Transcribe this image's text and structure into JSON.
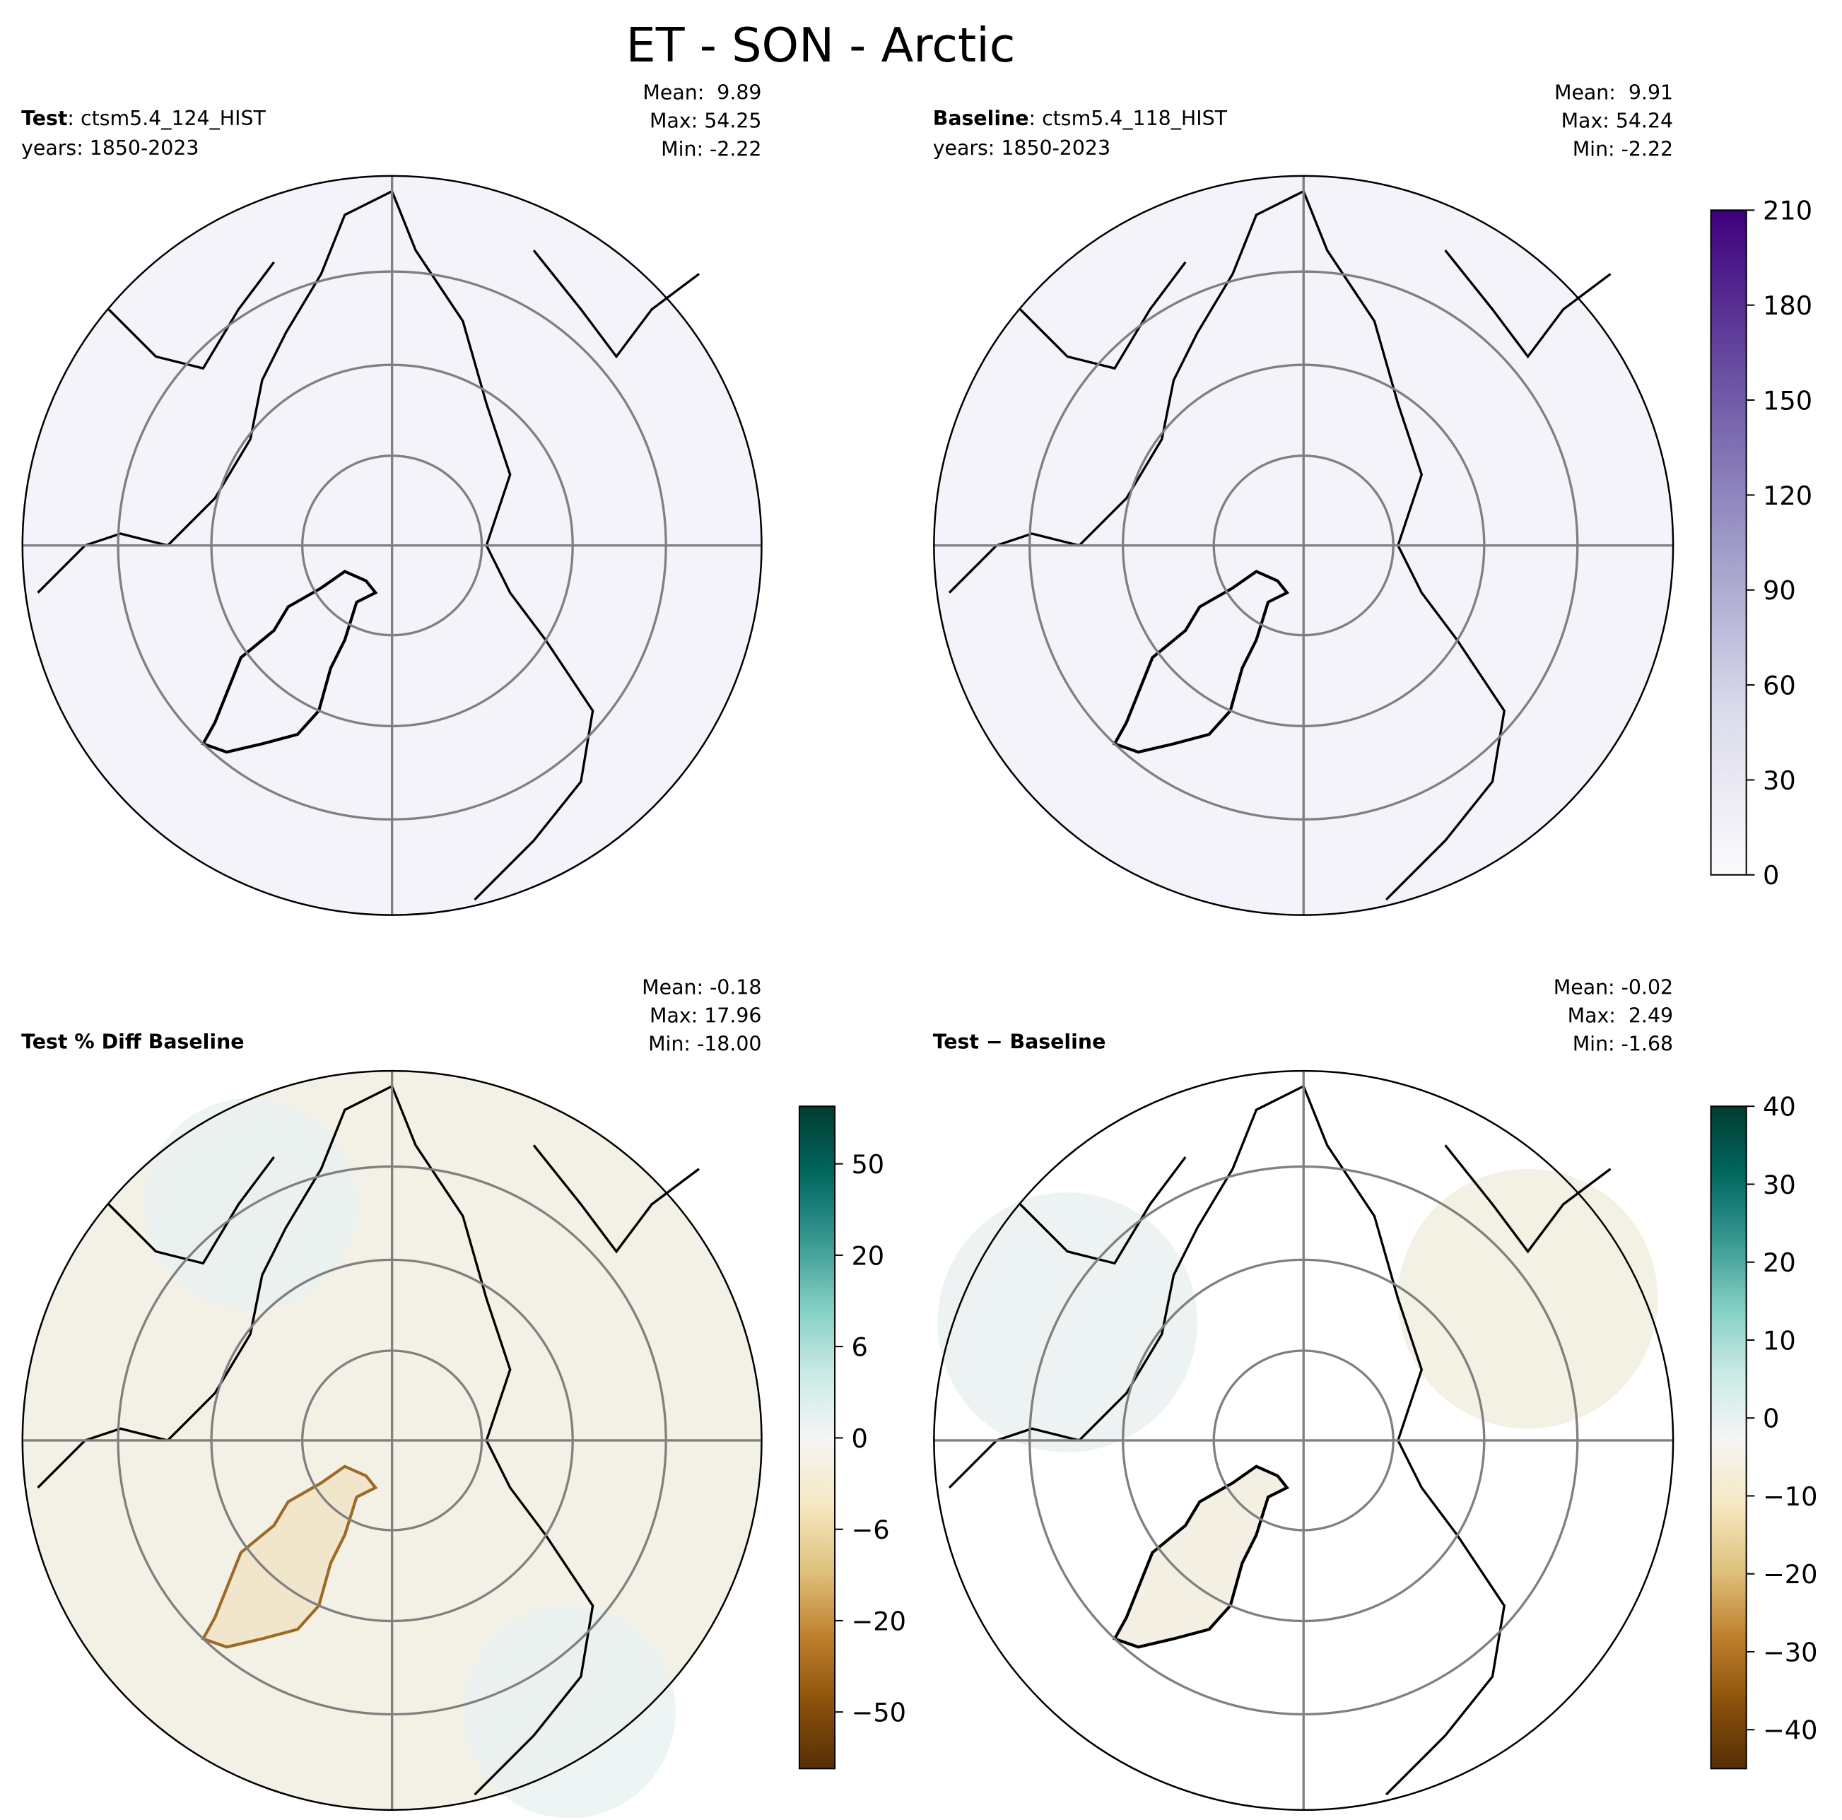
{
  "title": "ET - SON - Arctic",
  "panels": [
    {
      "label": "Test",
      "label_detail": ": ctsm5.4_124_HIST",
      "subtitle": "years: 1850-2023",
      "stats": [
        "Mean:  9.89",
        "Max: 54.25",
        "Min: -2.22"
      ],
      "fill": "#f4f3f9"
    },
    {
      "label": "Baseline",
      "label_detail": ": ctsm5.4_118_HIST",
      "subtitle": "years: 1850-2023",
      "stats": [
        "Mean:  9.91",
        "Max: 54.24",
        "Min: -2.22"
      ],
      "fill": "#f4f3f9"
    },
    {
      "label": "Test % Diff Baseline",
      "stats": [
        "Mean: -0.18",
        "Max: 17.96",
        "Min: -18.00"
      ],
      "fill": "#f3f1e6"
    },
    {
      "label": "Test − Baseline",
      "stats": [
        "Mean: -0.02",
        "Max:  2.49",
        "Min: -1.68"
      ],
      "fill": "#ffffff"
    }
  ],
  "colorbars": [
    {
      "lim": [
        0,
        210
      ],
      "ticks": [
        0,
        30,
        60,
        90,
        120,
        150,
        180,
        210
      ],
      "colors": [
        "#fcfbfd",
        "#dadaeb",
        "#9e9ac8",
        "#6a51a3",
        "#3f007d"
      ]
    },
    {
      "ticks": [
        {
          "value": -50,
          "label": "−50"
        },
        {
          "value": -20,
          "label": "−20"
        },
        {
          "value": -6,
          "label": "−6"
        },
        0,
        6,
        20,
        50
      ],
      "colors": [
        "#543005",
        "#8c510a",
        "#bf812d",
        "#dfc27d",
        "#f6e8c3",
        "#f5f5f5",
        "#c7eae5",
        "#80cdc1",
        "#35978f",
        "#01665e",
        "#003c30"
      ]
    },
    {
      "lim": [
        -45,
        40
      ],
      "ticks": [
        {
          "value": -40,
          "label": "−40"
        },
        {
          "value": -30,
          "label": "−30"
        },
        {
          "value": -20,
          "label": "−20"
        },
        {
          "value": -10,
          "label": "−10"
        },
        0,
        10,
        20,
        30,
        40
      ],
      "colors": [
        "#543005",
        "#8c510a",
        "#bf812d",
        "#dfc27d",
        "#f6e8c3",
        "#f5f5f5",
        "#c7eae5",
        "#80cdc1",
        "#35978f",
        "#01665e",
        "#003c30"
      ]
    }
  ]
}
